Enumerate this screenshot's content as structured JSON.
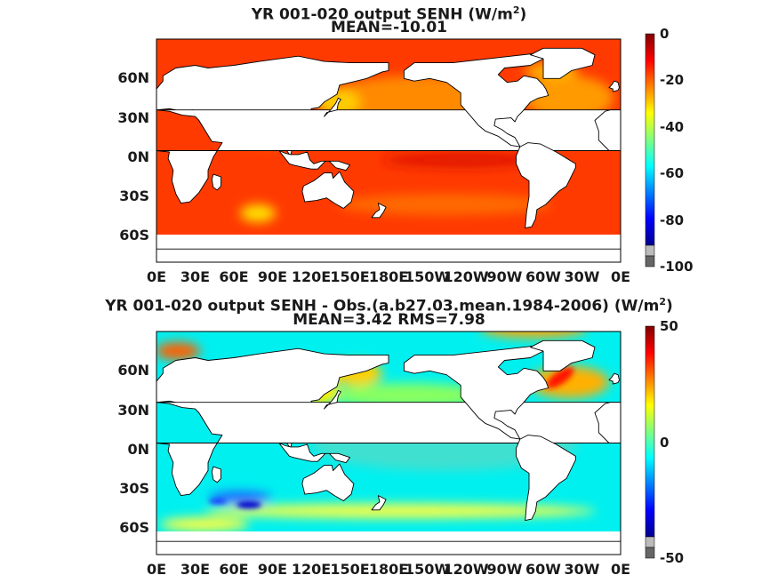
{
  "chart_data": [
    {
      "type": "heatmap",
      "title": "YR 001-020 output  SENH (W/m",
      "title_sup": "2",
      "title_end": ")",
      "subtitle": "MEAN=-10.01",
      "x_ticks": [
        "0E",
        "30E",
        "60E",
        "90E",
        "120E",
        "150E",
        "180E",
        "150W",
        "120W",
        "90W",
        "60W",
        "30W",
        "0E"
      ],
      "y_ticks": [
        "60N",
        "30N",
        "0N",
        "30S",
        "60S"
      ],
      "y_tick_values": [
        60,
        30,
        0,
        -30,
        -60
      ],
      "ylim": [
        -80,
        90
      ],
      "xlim": [
        0,
        360
      ],
      "colorbar": {
        "ticks": [
          "0",
          "-20",
          "-40",
          "-60",
          "-80",
          "-100"
        ],
        "tick_values": [
          0,
          -20,
          -40,
          -60,
          -80,
          -100
        ],
        "range": [
          -100,
          0
        ],
        "colormap": "jet",
        "below_colors": [
          "#bbbbbb",
          "#666666"
        ]
      }
    },
    {
      "type": "heatmap",
      "title": "YR 001-020 output SENH - Obs.(a.b27.03.mean.1984-2006) (W/m",
      "title_sup": "2",
      "title_end": ")",
      "subtitle": "MEAN=3.42 RMS=7.98",
      "x_ticks": [
        "0E",
        "30E",
        "60E",
        "90E",
        "120E",
        "150E",
        "180E",
        "150W",
        "120W",
        "90W",
        "60W",
        "30W",
        "0E"
      ],
      "y_ticks": [
        "60N",
        "30N",
        "0N",
        "30S",
        "60S"
      ],
      "y_tick_values": [
        60,
        30,
        0,
        -30,
        -60
      ],
      "ylim": [
        -80,
        90
      ],
      "xlim": [
        0,
        360
      ],
      "colorbar": {
        "ticks": [
          "50",
          "0",
          "-50"
        ],
        "tick_values": [
          50,
          0,
          -50
        ],
        "range": [
          -50,
          50
        ],
        "colormap": "jet",
        "below_colors": [
          "#bbbbbb",
          "#666666"
        ]
      }
    }
  ]
}
